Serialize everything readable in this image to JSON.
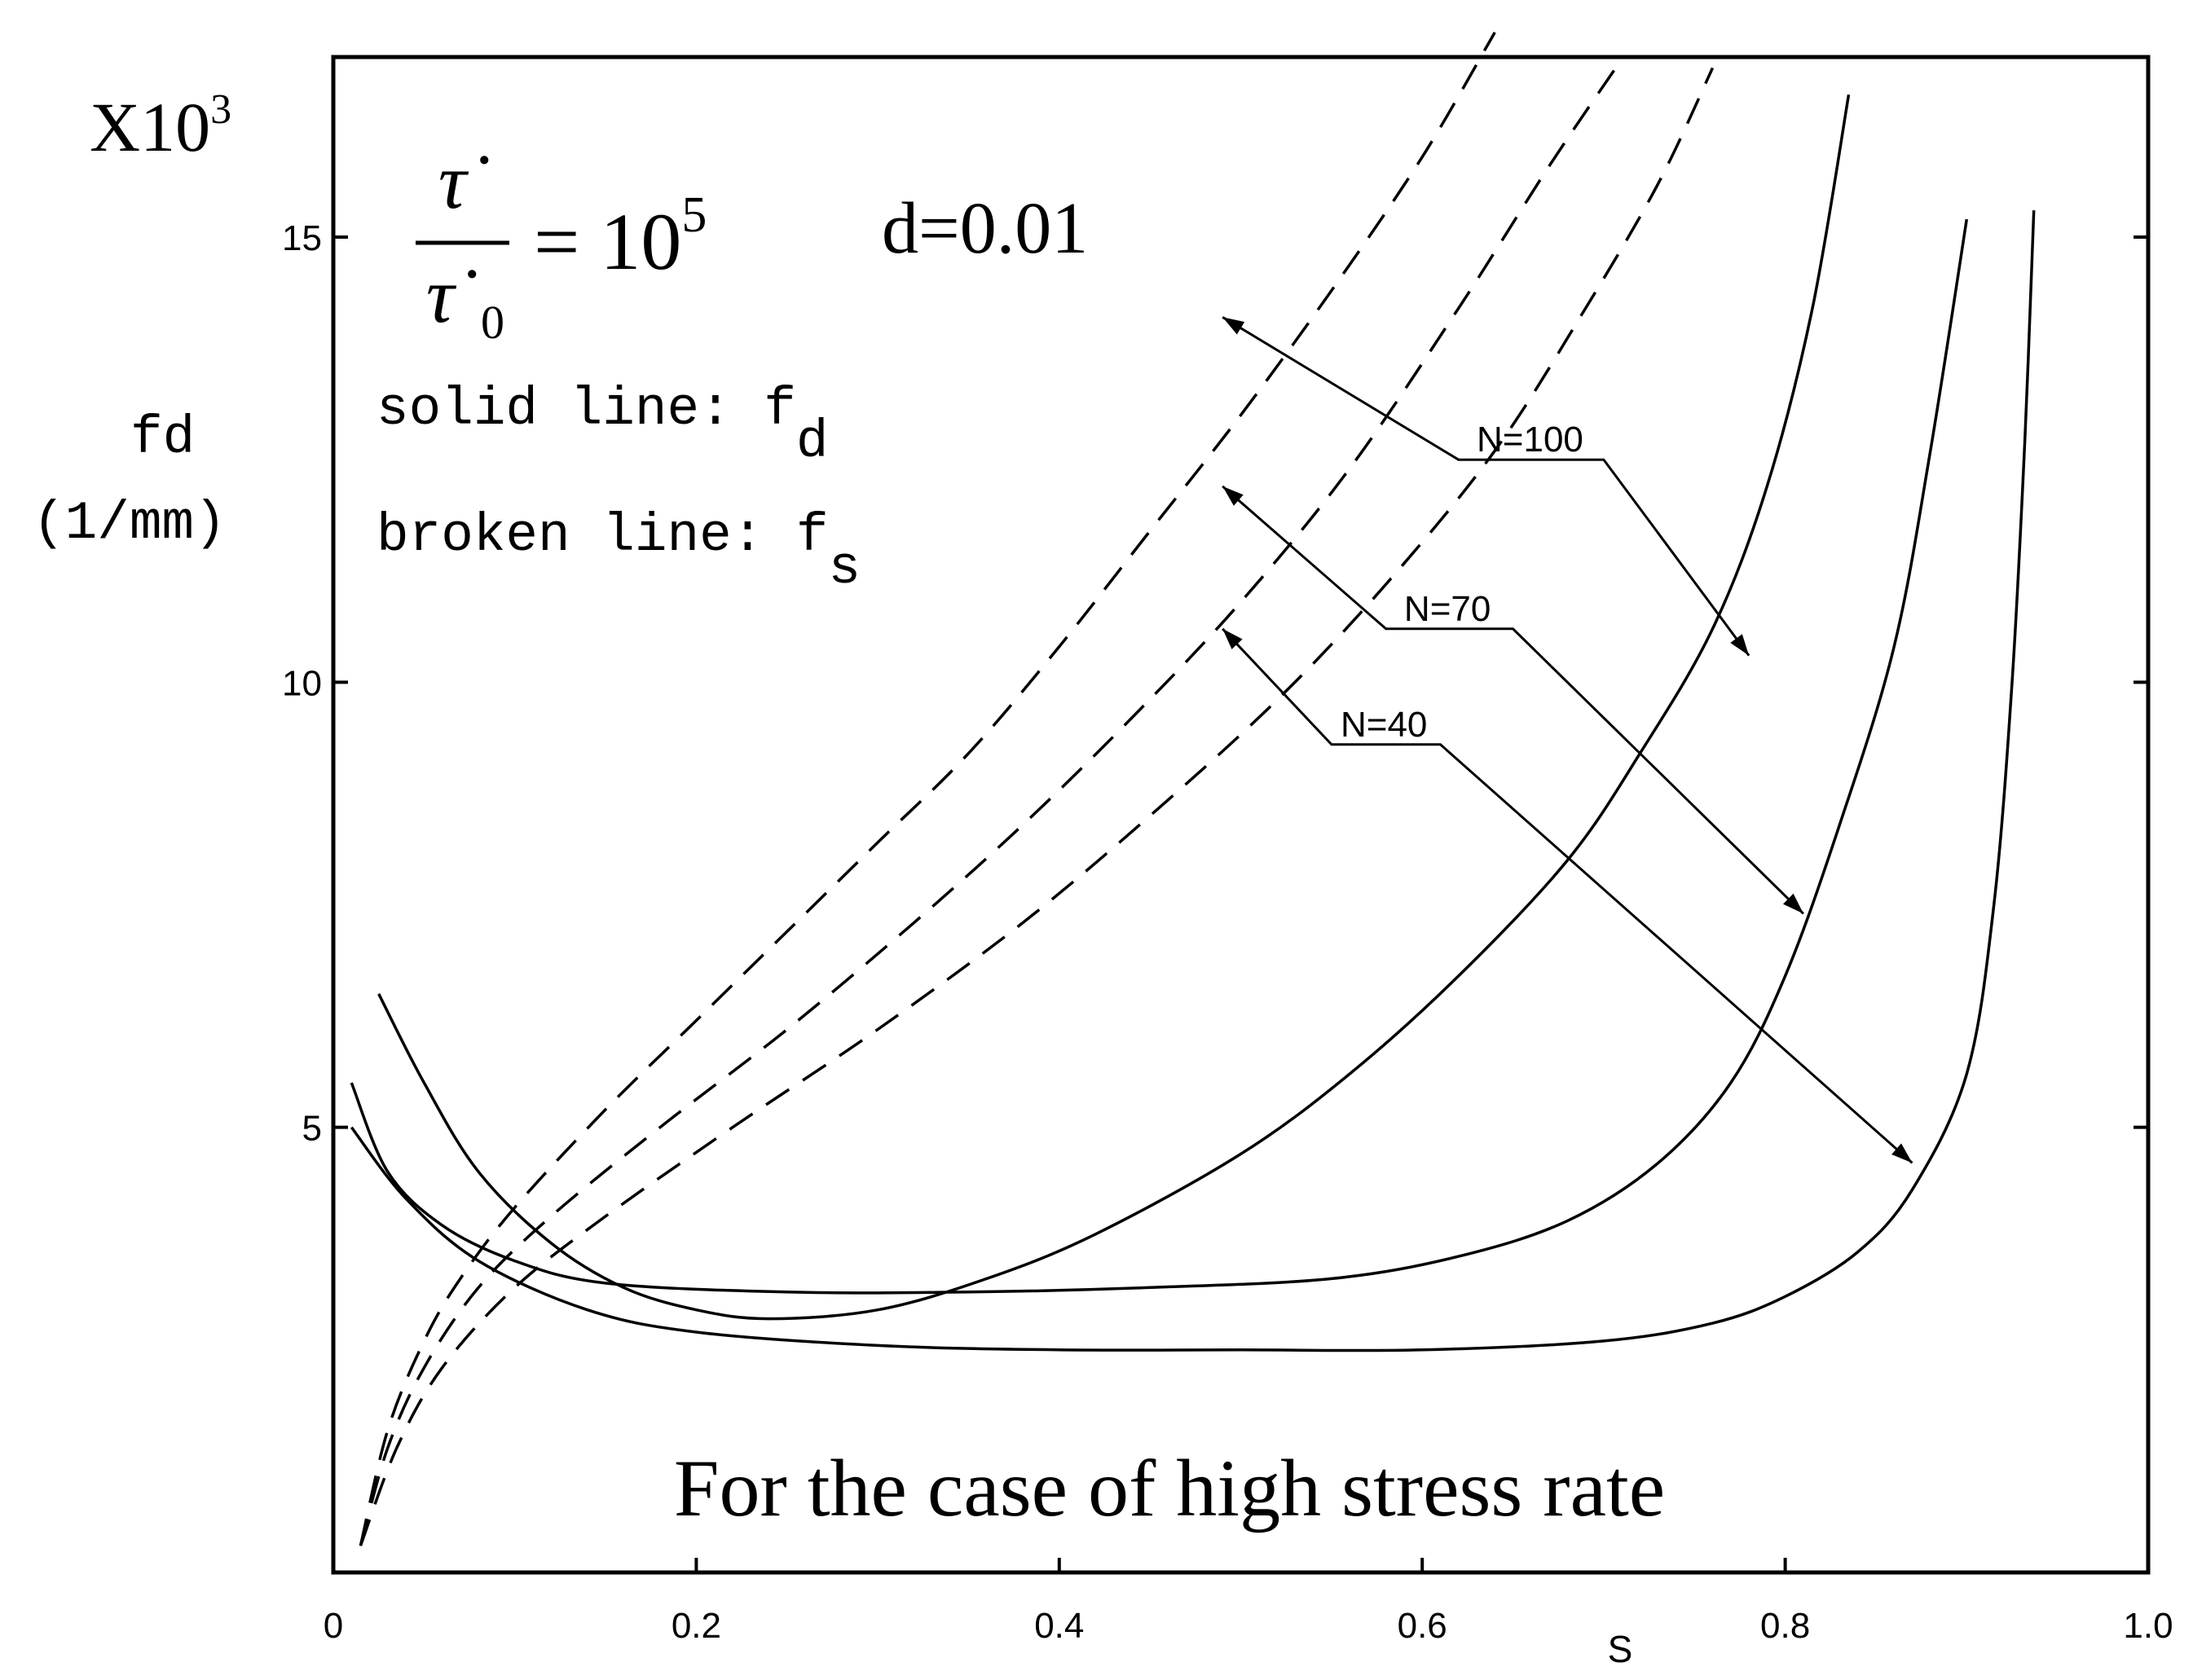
{
  "chart_data": {
    "type": "line",
    "title": "For the case of high stress rate",
    "xlabel": "S",
    "ylabel": "fd",
    "ylabel_unit": "(1/mm)",
    "y_multiplier": "X10",
    "y_multiplier_exp": "3",
    "xlim": [
      0,
      1.0
    ],
    "ylim": [
      0,
      17
    ],
    "xticks": [
      "0",
      "0.2",
      "0.4",
      "0.6",
      "0.8",
      "1.0"
    ],
    "xtick_values": [
      0,
      0.2,
      0.4,
      0.6,
      0.8,
      1.0
    ],
    "yticks": [
      "5",
      "10",
      "15"
    ],
    "ytick_values": [
      5,
      10,
      15
    ],
    "grid": false,
    "annotations": {
      "formula_num": "τ̇",
      "formula_den": "τ̇",
      "formula_den_sub": "0",
      "formula_rhs": "= 10",
      "formula_rhs_exp": "5",
      "d_label": "d=0.01",
      "legend_solid": "solid line: f",
      "legend_solid_sub": "d",
      "legend_broken": "broken line: f",
      "legend_broken_sub": "s"
    },
    "series": [
      {
        "name": "N=100",
        "style": "solid",
        "points": [
          [
            0.025,
            6.5
          ],
          [
            0.05,
            5.5
          ],
          [
            0.08,
            4.5
          ],
          [
            0.12,
            3.7
          ],
          [
            0.16,
            3.2
          ],
          [
            0.2,
            2.95
          ],
          [
            0.24,
            2.85
          ],
          [
            0.3,
            2.95
          ],
          [
            0.36,
            3.3
          ],
          [
            0.42,
            3.8
          ],
          [
            0.5,
            4.7
          ],
          [
            0.56,
            5.6
          ],
          [
            0.62,
            6.7
          ],
          [
            0.68,
            8.0
          ],
          [
            0.72,
            9.2
          ],
          [
            0.76,
            10.6
          ],
          [
            0.79,
            12.2
          ],
          [
            0.815,
            14.2
          ],
          [
            0.835,
            16.6
          ]
        ]
      },
      {
        "name": "N=70",
        "style": "solid",
        "points": [
          [
            0.01,
            5.5
          ],
          [
            0.03,
            4.5
          ],
          [
            0.06,
            3.9
          ],
          [
            0.1,
            3.5
          ],
          [
            0.15,
            3.25
          ],
          [
            0.25,
            3.15
          ],
          [
            0.35,
            3.15
          ],
          [
            0.45,
            3.2
          ],
          [
            0.55,
            3.3
          ],
          [
            0.62,
            3.55
          ],
          [
            0.68,
            3.95
          ],
          [
            0.73,
            4.6
          ],
          [
            0.77,
            5.5
          ],
          [
            0.8,
            6.7
          ],
          [
            0.83,
            8.4
          ],
          [
            0.86,
            10.4
          ],
          [
            0.88,
            12.6
          ],
          [
            0.9,
            15.2
          ]
        ]
      },
      {
        "name": "N=40",
        "style": "solid",
        "points": [
          [
            0.01,
            5.0
          ],
          [
            0.04,
            4.2
          ],
          [
            0.08,
            3.5
          ],
          [
            0.14,
            2.95
          ],
          [
            0.2,
            2.7
          ],
          [
            0.3,
            2.55
          ],
          [
            0.4,
            2.5
          ],
          [
            0.5,
            2.5
          ],
          [
            0.6,
            2.5
          ],
          [
            0.7,
            2.6
          ],
          [
            0.76,
            2.8
          ],
          [
            0.8,
            3.1
          ],
          [
            0.84,
            3.6
          ],
          [
            0.87,
            4.3
          ],
          [
            0.9,
            5.6
          ],
          [
            0.915,
            7.5
          ],
          [
            0.925,
            10.0
          ],
          [
            0.932,
            12.7
          ],
          [
            0.937,
            15.3
          ]
        ]
      },
      {
        "name": "N=100",
        "style": "dashed",
        "points": [
          [
            0.015,
            0.3
          ],
          [
            0.03,
            1.6
          ],
          [
            0.05,
            2.6
          ],
          [
            0.07,
            3.3
          ],
          [
            0.1,
            4.1
          ],
          [
            0.15,
            5.2
          ],
          [
            0.2,
            6.2
          ],
          [
            0.25,
            7.2
          ],
          [
            0.3,
            8.2
          ],
          [
            0.35,
            9.2
          ],
          [
            0.4,
            10.4
          ],
          [
            0.45,
            11.7
          ],
          [
            0.5,
            13.0
          ],
          [
            0.55,
            14.4
          ],
          [
            0.6,
            15.9
          ],
          [
            0.64,
            17.3
          ]
        ]
      },
      {
        "name": "N=70",
        "style": "dashed",
        "points": [
          [
            0.015,
            0.3
          ],
          [
            0.03,
            1.4
          ],
          [
            0.05,
            2.3
          ],
          [
            0.08,
            3.2
          ],
          [
            0.12,
            4.0
          ],
          [
            0.18,
            5.0
          ],
          [
            0.25,
            6.1
          ],
          [
            0.32,
            7.3
          ],
          [
            0.38,
            8.4
          ],
          [
            0.44,
            9.6
          ],
          [
            0.5,
            10.9
          ],
          [
            0.56,
            12.4
          ],
          [
            0.62,
            14.2
          ],
          [
            0.67,
            15.8
          ],
          [
            0.71,
            17.0
          ]
        ]
      },
      {
        "name": "N=40",
        "style": "dashed",
        "points": [
          [
            0.015,
            0.3
          ],
          [
            0.035,
            1.4
          ],
          [
            0.06,
            2.3
          ],
          [
            0.1,
            3.2
          ],
          [
            0.15,
            4.0
          ],
          [
            0.22,
            5.0
          ],
          [
            0.3,
            6.1
          ],
          [
            0.38,
            7.3
          ],
          [
            0.45,
            8.5
          ],
          [
            0.52,
            9.8
          ],
          [
            0.58,
            11.1
          ],
          [
            0.64,
            12.6
          ],
          [
            0.69,
            14.2
          ],
          [
            0.73,
            15.6
          ],
          [
            0.76,
            16.9
          ]
        ]
      }
    ],
    "labels": [
      {
        "text": "N=100",
        "arrow_from": [
          0.49,
          14.1
        ],
        "arrow_to": [
          0.78,
          10.3
        ],
        "knee_a": [
          0.62,
          12.5
        ],
        "knee_b": [
          0.7,
          12.5
        ],
        "text_at": [
          0.63,
          12.5
        ]
      },
      {
        "text": "N=70",
        "arrow_from": [
          0.49,
          12.2
        ],
        "arrow_to": [
          0.81,
          7.4
        ],
        "knee_a": [
          0.58,
          10.6
        ],
        "knee_b": [
          0.65,
          10.6
        ],
        "text_at": [
          0.59,
          10.6
        ]
      },
      {
        "text": "N=40",
        "arrow_from": [
          0.49,
          10.6
        ],
        "arrow_to": [
          0.87,
          4.6
        ],
        "knee_a": [
          0.55,
          9.3
        ],
        "knee_b": [
          0.61,
          9.3
        ],
        "text_at": [
          0.555,
          9.3
        ]
      }
    ]
  }
}
